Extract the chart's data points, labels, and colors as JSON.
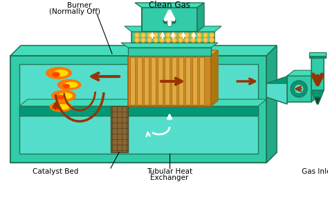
{
  "bg_color": "#ffffff",
  "teal_main": "#33CCAA",
  "teal_top": "#44DDBB",
  "teal_side": "#22AA88",
  "teal_inner": "#55DDCC",
  "teal_edge": "#227755",
  "teal_dark_face": "#009977",
  "gold_tube_bg": "#CC8822",
  "gold_tube_light": "#DDAA44",
  "gold_tube_dark": "#AA6611",
  "catalyst_brown": "#886633",
  "catalyst_line": "#554422",
  "red_arrow": "#993300",
  "white": "#FFFFFF",
  "black": "#000000",
  "flame_orange": "#FF7700",
  "flame_yellow": "#FFDD00",
  "flame_red": "#FF4400",
  "font_size": 7.5,
  "labels": {
    "clean_gas": "Clean Gas",
    "burner": "Burner",
    "normally_off": "(Normally Off)",
    "catalyst_bed": "Catalyst Bed",
    "tubular_heat": "Tubular Heat",
    "exchanger": "Exchanger",
    "gas_inlet": "Gas Inlet"
  }
}
